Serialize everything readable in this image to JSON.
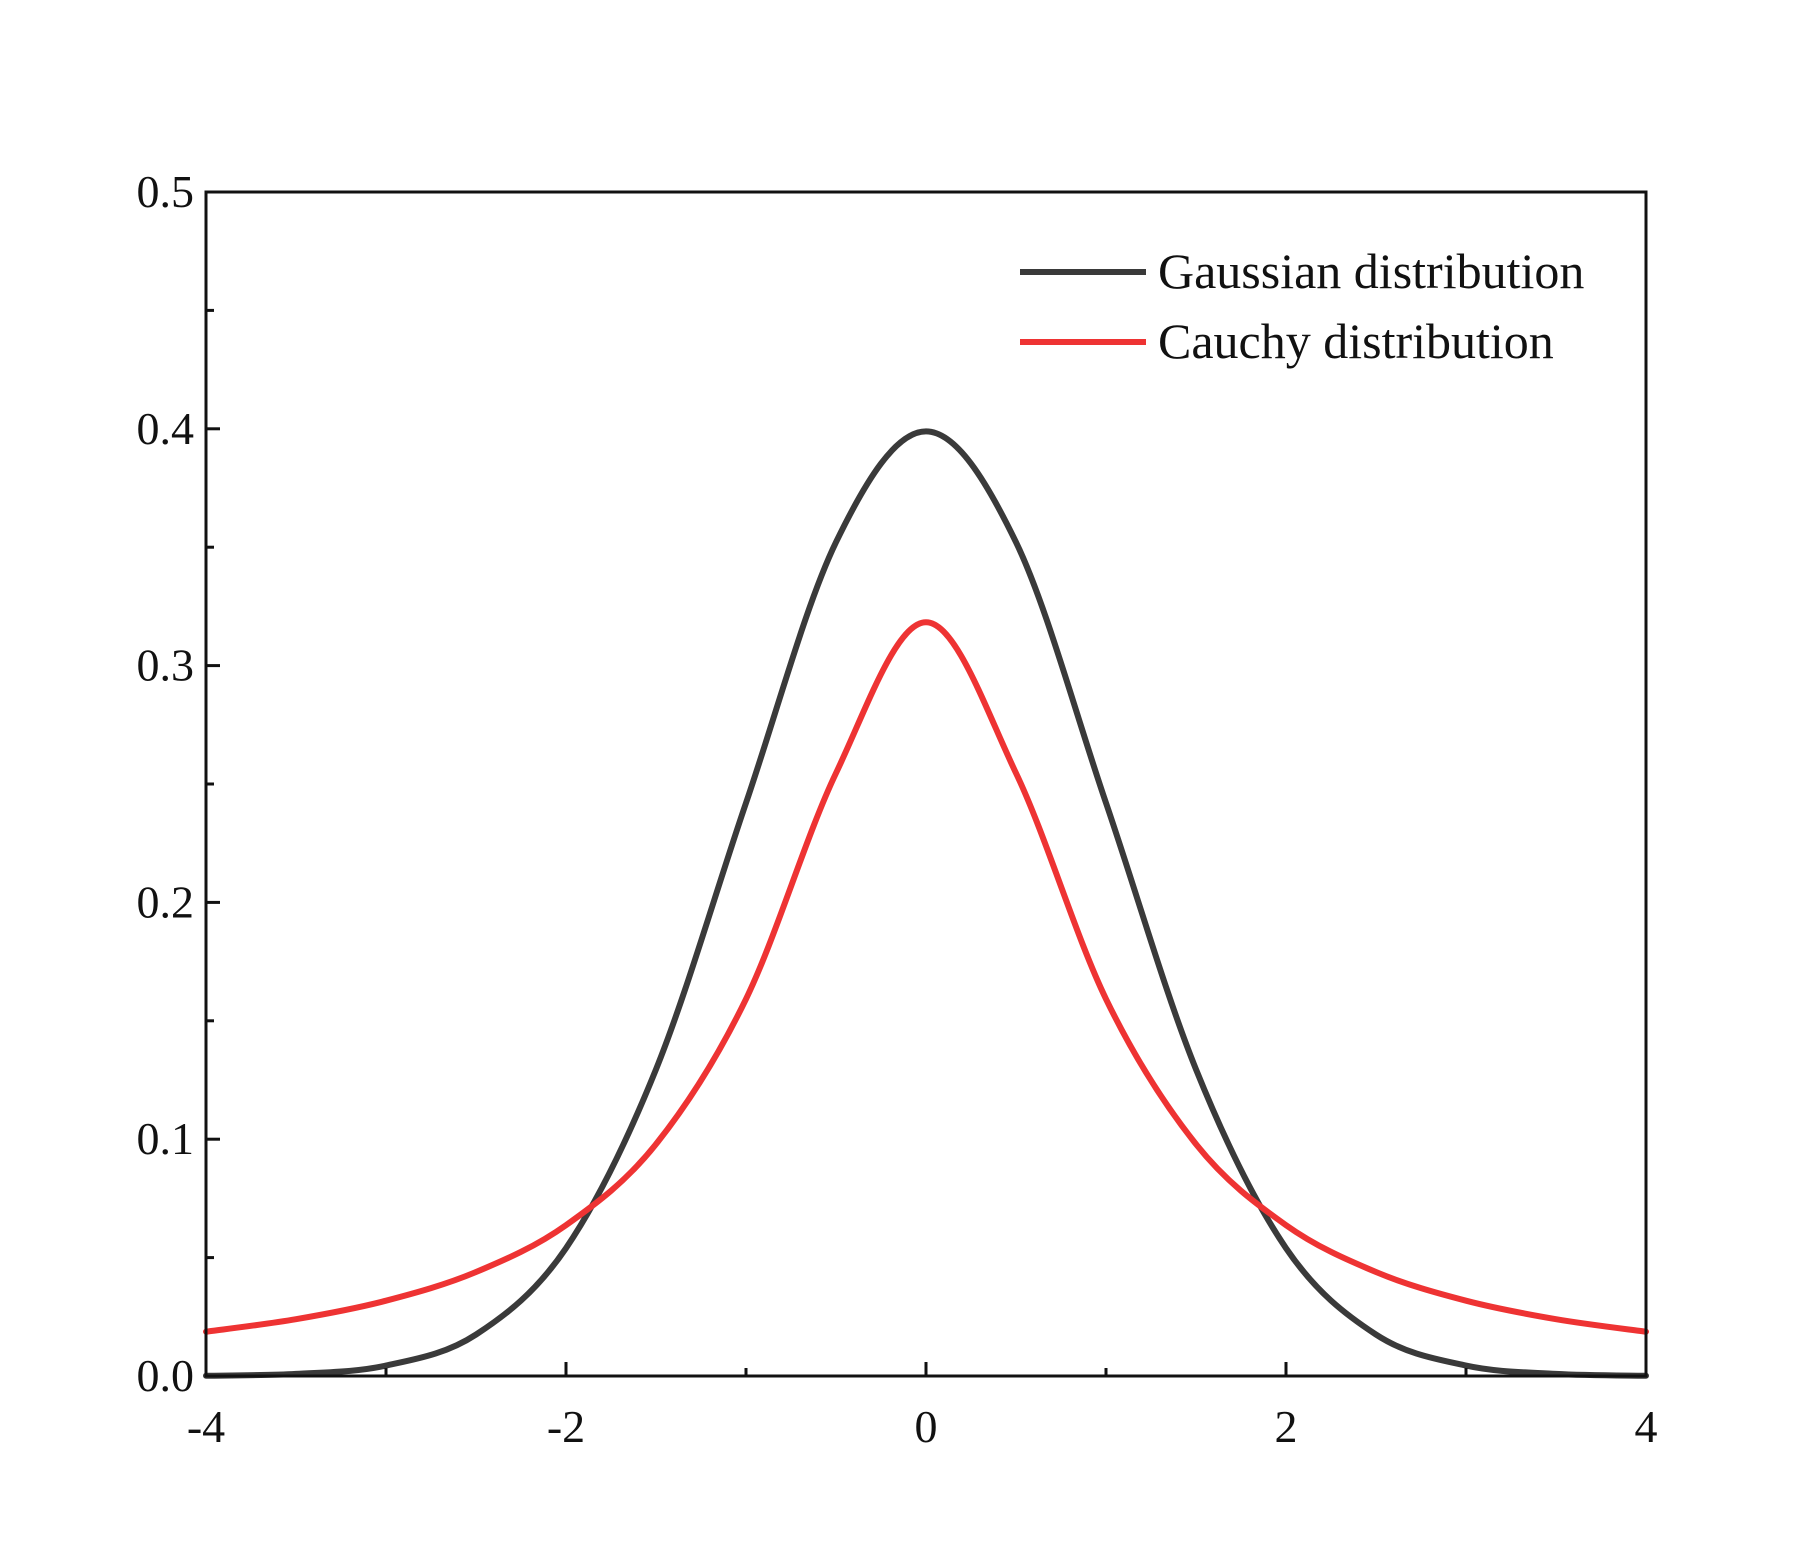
{
  "chart_data": {
    "type": "line",
    "title": "",
    "xlabel": "",
    "ylabel": "",
    "xlim": [
      -4,
      4
    ],
    "ylim": [
      0,
      0.5
    ],
    "x_ticks": [
      -4,
      -2,
      0,
      2,
      4
    ],
    "x_tick_labels": [
      "-4",
      "-2",
      "0",
      "2",
      "4"
    ],
    "x_minor_ticks": [
      -3,
      -1,
      1,
      3
    ],
    "y_ticks": [
      0.0,
      0.1,
      0.2,
      0.3,
      0.4,
      0.5
    ],
    "y_tick_labels": [
      "0.0",
      "0.1",
      "0.2",
      "0.3",
      "0.4",
      "0.5"
    ],
    "y_minor_ticks": [
      0.05,
      0.15,
      0.25,
      0.35,
      0.45
    ],
    "grid": false,
    "legend_position": "top-right",
    "x": [
      -4.0,
      -3.5,
      -3.0,
      -2.5,
      -2.0,
      -1.5,
      -1.0,
      -0.5,
      0.0,
      0.5,
      1.0,
      1.5,
      2.0,
      2.5,
      3.0,
      3.5,
      4.0
    ],
    "series": [
      {
        "name": "Gaussian distribution",
        "color": "#3a3a3a",
        "values": [
          0.0001,
          0.0009,
          0.0044,
          0.0175,
          0.054,
          0.1295,
          0.242,
          0.3521,
          0.3989,
          0.3521,
          0.242,
          0.1295,
          0.054,
          0.0175,
          0.0044,
          0.0009,
          0.0001
        ]
      },
      {
        "name": "Cauchy distribution",
        "color": "#ee3333",
        "values": [
          0.0187,
          0.024,
          0.0318,
          0.0439,
          0.0637,
          0.0979,
          0.1592,
          0.2546,
          0.3183,
          0.2546,
          0.1592,
          0.0979,
          0.0637,
          0.0439,
          0.0318,
          0.024,
          0.0187
        ]
      }
    ]
  }
}
